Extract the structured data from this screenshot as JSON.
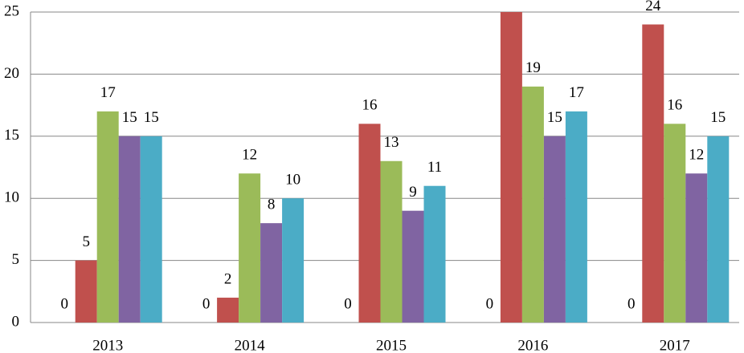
{
  "chart_data": {
    "type": "bar",
    "categories": [
      "2013",
      "2014",
      "2015",
      "2016",
      "2017"
    ],
    "series": [
      {
        "color": "#4f81bd",
        "values": [
          0,
          0,
          0,
          0,
          0
        ]
      },
      {
        "color": "#c0504d",
        "values": [
          5,
          2,
          16,
          25,
          24
        ]
      },
      {
        "color": "#9bbb59",
        "values": [
          17,
          12,
          13,
          19,
          16
        ]
      },
      {
        "color": "#8064a2",
        "values": [
          15,
          8,
          9,
          15,
          12
        ]
      },
      {
        "color": "#4bacc6",
        "values": [
          15,
          10,
          11,
          17,
          15
        ]
      }
    ],
    "ylim": [
      0,
      25
    ],
    "yticks": [
      0,
      5,
      10,
      15,
      20,
      25
    ],
    "grid": true
  }
}
